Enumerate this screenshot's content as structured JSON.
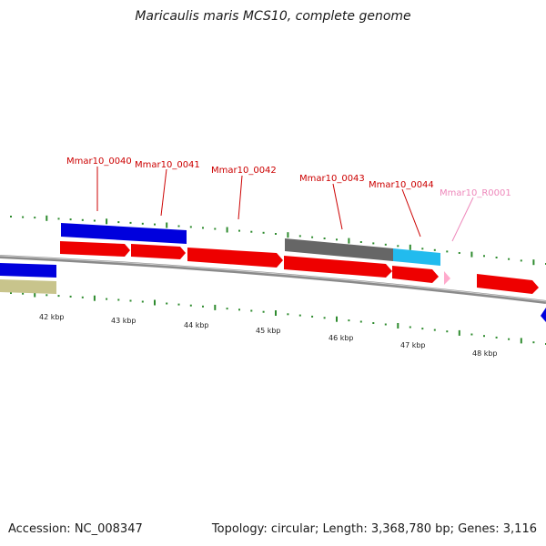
{
  "title": "Maricaulis maris MCS10, complete genome",
  "footer": {
    "accession": "Accession: NC_008347",
    "summary": "Topology: circular; Length: 3,368,780 bp; Genes: 3,116"
  },
  "colors": {
    "axis": "#8a8a8a",
    "tick": "#2e8b2e",
    "cds": "#ff0000",
    "rrna": "#ffaacc",
    "label": "#cc0000",
    "label_rna": "#ee88bb",
    "blue_feature": "#0000dd",
    "gray_feature": "#666666",
    "cyan_feature": "#22bbee",
    "khaki_feature": "#c8c48c"
  },
  "scale_labels": [
    "42 kbp",
    "43 kbp",
    "44 kbp",
    "45 kbp",
    "46 kbp",
    "47 kbp",
    "48 kbp"
  ],
  "genes": [
    {
      "label": "Mmar10_0040",
      "type": "CDS"
    },
    {
      "label": "Mmar10_0041",
      "type": "CDS"
    },
    {
      "label": "Mmar10_0042",
      "type": "CDS"
    },
    {
      "label": "Mmar10_0043",
      "type": "CDS"
    },
    {
      "label": "Mmar10_0044",
      "type": "CDS"
    },
    {
      "label": "Mmar10_R0001",
      "type": "rRNA"
    }
  ]
}
